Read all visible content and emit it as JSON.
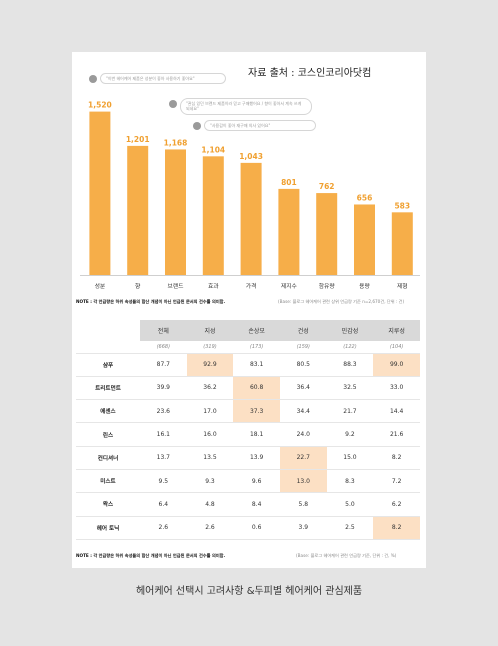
{
  "source_title": "자료 출처 : 코스인코리아닷컴",
  "quotes": [
    "\"이번 헤어케어 제품은 성분이 좋아 사용하기 좋아요\"",
    "\"관심 있던 브랜드 제품이라 믿고 구매했어요 / 향이 좋아서 계속 쓰게 되네요\"",
    "\"사용감이 좋아 재구매 의사 있어요\""
  ],
  "chart_data": {
    "type": "bar",
    "categories": [
      "성분",
      "향",
      "브랜드",
      "효과",
      "가격",
      "제지수",
      "함유량",
      "용량",
      "제형"
    ],
    "values": [
      1520,
      1201,
      1168,
      1104,
      1043,
      801,
      762,
      656,
      583
    ],
    "value_labels": [
      "1,520",
      "1,201",
      "1,168",
      "1,104",
      "1,043",
      "801",
      "762",
      "656",
      "583"
    ],
    "ylim": [
      0,
      1600
    ],
    "bar_color": "#f6ae49",
    "label_color": "#f0a030",
    "grid": false
  },
  "note_left": "NOTE : 각 언급량은 하위 속성들의 합산 개념이 아닌 언급된 문서의 건수를 의미함.",
  "note_right": "(Base: 블로그 헤어케어 관련 상위 언급량 기준 n=2,670건, 단위 : 건)",
  "table": {
    "columns": [
      "전체",
      "지성",
      "손상모",
      "건성",
      "민감성",
      "지루성"
    ],
    "ns": [
      "(668)",
      "(319)",
      "(173)",
      "(159)",
      "(122)",
      "(104)"
    ],
    "rows": [
      {
        "label": "샴푸",
        "values": [
          "87.7",
          "92.9",
          "83.1",
          "80.5",
          "88.3",
          "99.0"
        ],
        "hl": [
          1,
          5
        ]
      },
      {
        "label": "트리트먼트",
        "values": [
          "39.9",
          "36.2",
          "60.8",
          "36.4",
          "32.5",
          "33.0"
        ],
        "hl": [
          2
        ]
      },
      {
        "label": "에센스",
        "values": [
          "23.6",
          "17.0",
          "37.3",
          "34.4",
          "21.7",
          "14.4"
        ],
        "hl": [
          2
        ]
      },
      {
        "label": "린스",
        "values": [
          "16.1",
          "16.0",
          "18.1",
          "24.0",
          "9.2",
          "21.6"
        ],
        "hl": []
      },
      {
        "label": "컨디셔너",
        "values": [
          "13.7",
          "13.5",
          "13.9",
          "22.7",
          "15.0",
          "8.2"
        ],
        "hl": [
          3
        ]
      },
      {
        "label": "미스트",
        "values": [
          "9.5",
          "9.3",
          "9.6",
          "13.0",
          "8.3",
          "7.2"
        ],
        "hl": [
          3
        ]
      },
      {
        "label": "왁스",
        "values": [
          "6.4",
          "4.8",
          "8.4",
          "5.8",
          "5.0",
          "6.2"
        ],
        "hl": []
      },
      {
        "label": "헤어 토닉",
        "values": [
          "2.6",
          "2.6",
          "0.6",
          "3.9",
          "2.5",
          "8.2"
        ],
        "hl": [
          5
        ]
      }
    ],
    "highlight_color": "#fce0c4"
  },
  "table_note_left": "NOTE : 각 언급량은 하위 속성들의 합산 개념이 아닌 언급된 문서의 건수를 의미함.",
  "table_note_right": "(Base: 블로그 헤어케어 관련 언급량 기준, 단위 : 건, %)",
  "caption": "헤어케어 선택시 고려사항 &두피별 헤어케어 관심제품"
}
